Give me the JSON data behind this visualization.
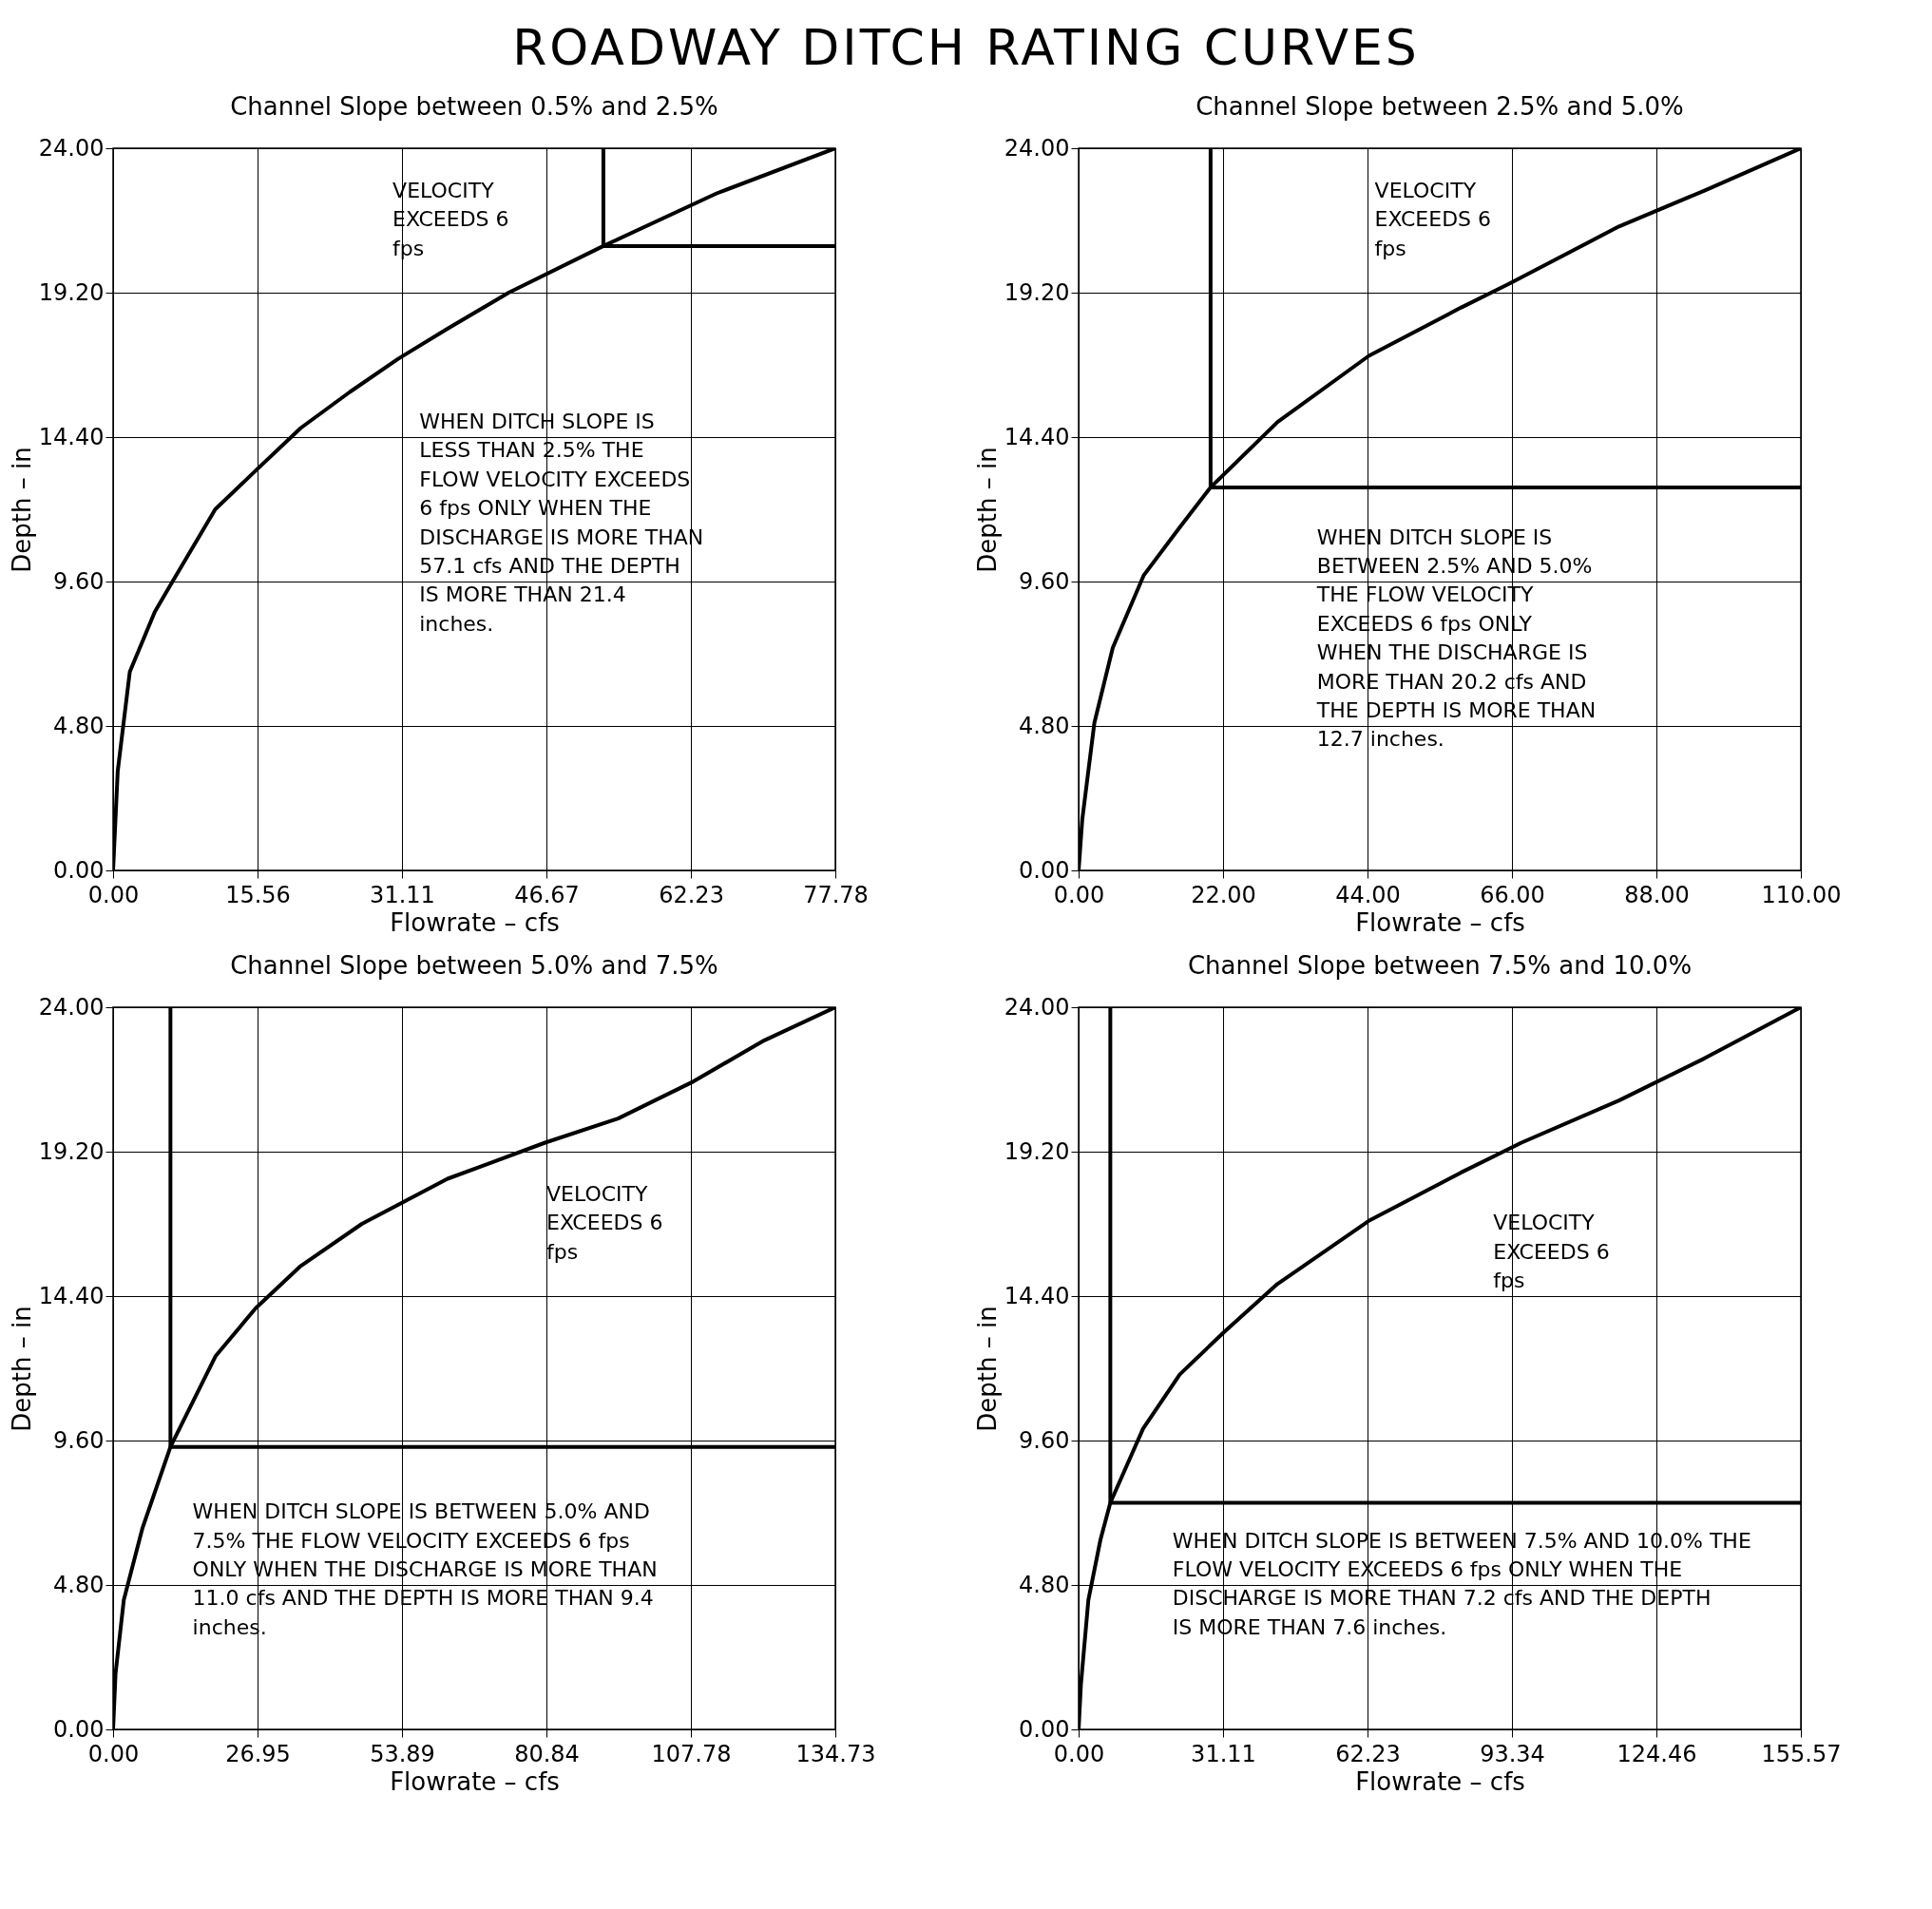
{
  "chart_data": [
    {
      "type": "other",
      "title": "ROADWAY DITCH RATING CURVES"
    },
    {
      "type": "line",
      "title": "Channel Slope between 0.5% and 2.5%",
      "xlabel": "Flowrate – cfs",
      "ylabel": "Depth – in",
      "series": [
        {
          "color": "#000000",
          "x": [
            0,
            0.5,
            1.8,
            4.5,
            6.4,
            11.0,
            15.4,
            20.2,
            25.5,
            30.7,
            36.0,
            42.6,
            52.8,
            65.0,
            77.78
          ],
          "values": [
            0,
            3.3,
            6.6,
            8.6,
            9.6,
            12.0,
            13.3,
            14.7,
            15.9,
            17.0,
            18.0,
            19.2,
            20.75,
            22.5,
            24
          ]
        }
      ],
      "xlim": [
        0,
        77.78
      ],
      "ylim": [
        0,
        24
      ],
      "xticks": [
        {
          "value": 0,
          "label": "0.00"
        },
        15.56,
        31.11,
        46.67,
        62.23,
        77.78
      ],
      "yticks": [
        {
          "value": 0,
          "label": "0.00"
        },
        {
          "value": 4.8,
          "label": "4.80"
        },
        {
          "value": 9.6,
          "label": "9.60"
        },
        {
          "value": 14.4,
          "label": "14.40"
        },
        {
          "value": 19.2,
          "label": "19.20"
        },
        {
          "value": 24,
          "label": "24.00"
        }
      ],
      "grid": true,
      "ref_lines": [
        {
          "axis": "x",
          "value": 52.8
        },
        {
          "axis": "y",
          "value": 20.75
        }
      ],
      "annotations": [
        "VELOCITY EXCEEDS 6 fps",
        "WHEN DITCH SLOPE IS LESS THAN 2.5% THE FLOW VELOCITY EXCEEDS 6 fps ONLY WHEN THE DISCHARGE IS MORE THAN 57.1 cfs AND THE DEPTH IS MORE THAN 21.4 inches."
      ]
    },
    {
      "type": "line",
      "title": "Channel Slope between 2.5% and 5.0%",
      "xlabel": "Flowrate – cfs",
      "ylabel": "Depth – in",
      "series": [
        {
          "color": "#000000",
          "x": [
            0,
            0.56,
            2.4,
            5.2,
            9.9,
            15.4,
            20.1,
            30.3,
            44.2,
            58.2,
            65.6,
            82.3,
            95.4,
            110
          ],
          "values": [
            0,
            1.7,
            4.9,
            7.4,
            9.8,
            11.4,
            12.73,
            14.9,
            17.1,
            18.7,
            19.5,
            21.4,
            22.6,
            24
          ]
        }
      ],
      "xlim": [
        0,
        110
      ],
      "ylim": [
        0,
        24
      ],
      "xticks": [
        {
          "value": 0,
          "label": "0.00"
        },
        {
          "value": 22,
          "label": "22.00"
        },
        {
          "value": 44,
          "label": "44.00"
        },
        {
          "value": 66,
          "label": "66.00"
        },
        {
          "value": 88,
          "label": "88.00"
        },
        {
          "value": 110,
          "label": "110.00"
        }
      ],
      "yticks": [
        {
          "value": 0,
          "label": "0.00"
        },
        {
          "value": 4.8,
          "label": "4.80"
        },
        {
          "value": 9.6,
          "label": "9.60"
        },
        {
          "value": 14.4,
          "label": "14.40"
        },
        {
          "value": 19.2,
          "label": "19.20"
        },
        {
          "value": 24,
          "label": "24.00"
        }
      ],
      "grid": true,
      "ref_lines": [
        {
          "axis": "x",
          "value": 20.1
        },
        {
          "axis": "y",
          "value": 12.73
        }
      ],
      "annotations": [
        "VELOCITY EXCEEDS 6 fps",
        "WHEN DITCH SLOPE IS BETWEEN 2.5% AND 5.0% THE FLOW VELOCITY EXCEEDS 6 fps ONLY WHEN THE DISCHARGE IS MORE THAN 20.2 cfs AND THE DEPTH IS MORE THAN 12.7 inches."
      ]
    },
    {
      "type": "line",
      "title": "Channel Slope between 5.0% and 7.5%",
      "xlabel": "Flowrate – cfs",
      "ylabel": "Depth – in",
      "series": [
        {
          "color": "#000000",
          "x": [
            0,
            0.46,
            2.0,
            5.5,
            10.7,
            19.1,
            26.6,
            35.0,
            46.4,
            62.4,
            80.6,
            94.2,
            107.9,
            121.5,
            134.73
          ],
          "values": [
            0,
            1.86,
            4.3,
            6.7,
            9.39,
            12.4,
            14.0,
            15.4,
            16.8,
            18.3,
            19.5,
            20.3,
            21.5,
            22.9,
            24
          ]
        }
      ],
      "xlim": [
        0,
        134.73
      ],
      "ylim": [
        0,
        24
      ],
      "xticks": [
        {
          "value": 0,
          "label": "0.00"
        },
        26.95,
        53.89,
        80.84,
        107.78,
        134.73
      ],
      "yticks": [
        {
          "value": 0,
          "label": "0.00"
        },
        {
          "value": 4.8,
          "label": "4.80"
        },
        {
          "value": 9.6,
          "label": "9.60"
        },
        {
          "value": 14.4,
          "label": "14.40"
        },
        {
          "value": 19.2,
          "label": "19.20"
        },
        {
          "value": 24,
          "label": "24.00"
        }
      ],
      "grid": true,
      "ref_lines": [
        {
          "axis": "x",
          "value": 10.7
        },
        {
          "axis": "y",
          "value": 9.39
        }
      ],
      "annotations": [
        "VELOCITY EXCEEDS 6 fps",
        "WHEN DITCH SLOPE IS BETWEEN 5.0% AND 7.5% THE FLOW VELOCITY EXCEEDS 6 fps ONLY WHEN THE DISCHARGE IS MORE THAN 11.0 cfs AND THE DEPTH IS MORE THAN 9.4 inches."
      ]
    },
    {
      "type": "line",
      "title": "Channel Slope between 7.5% and 10.0%",
      "xlabel": "Flowrate – cfs",
      "ylabel": "Depth – in",
      "series": [
        {
          "color": "#000000",
          "x": [
            0,
            0.5,
            2.1,
            4.7,
            6.83,
            13.9,
            21.8,
            31.3,
            42.8,
            62.5,
            82.3,
            95.4,
            116.4,
            134.8,
            155.57
          ],
          "values": [
            0,
            1.5,
            4.3,
            6.3,
            7.53,
            10.0,
            11.8,
            13.2,
            14.8,
            16.9,
            18.5,
            19.5,
            20.9,
            22.3,
            24
          ]
        }
      ],
      "xlim": [
        0,
        155.57
      ],
      "ylim": [
        0,
        24
      ],
      "xticks": [
        {
          "value": 0,
          "label": "0.00"
        },
        31.11,
        62.23,
        93.34,
        124.46,
        155.57
      ],
      "yticks": [
        {
          "value": 0,
          "label": "0.00"
        },
        {
          "value": 4.8,
          "label": "4.80"
        },
        {
          "value": 9.6,
          "label": "9.60"
        },
        {
          "value": 14.4,
          "label": "14.40"
        },
        {
          "value": 19.2,
          "label": "19.20"
        },
        {
          "value": 24,
          "label": "24.00"
        }
      ],
      "grid": true,
      "ref_lines": [
        {
          "axis": "x",
          "value": 6.83
        },
        {
          "axis": "y",
          "value": 7.53
        }
      ],
      "annotations": [
        "VELOCITY EXCEEDS 6 fps",
        "WHEN DITCH SLOPE IS BETWEEN 7.5% AND 10.0% THE FLOW VELOCITY EXCEEDS 6 fps ONLY WHEN THE DISCHARGE IS MORE THAN 7.2 cfs AND THE DEPTH IS MORE THAN 7.6 inches."
      ]
    }
  ]
}
